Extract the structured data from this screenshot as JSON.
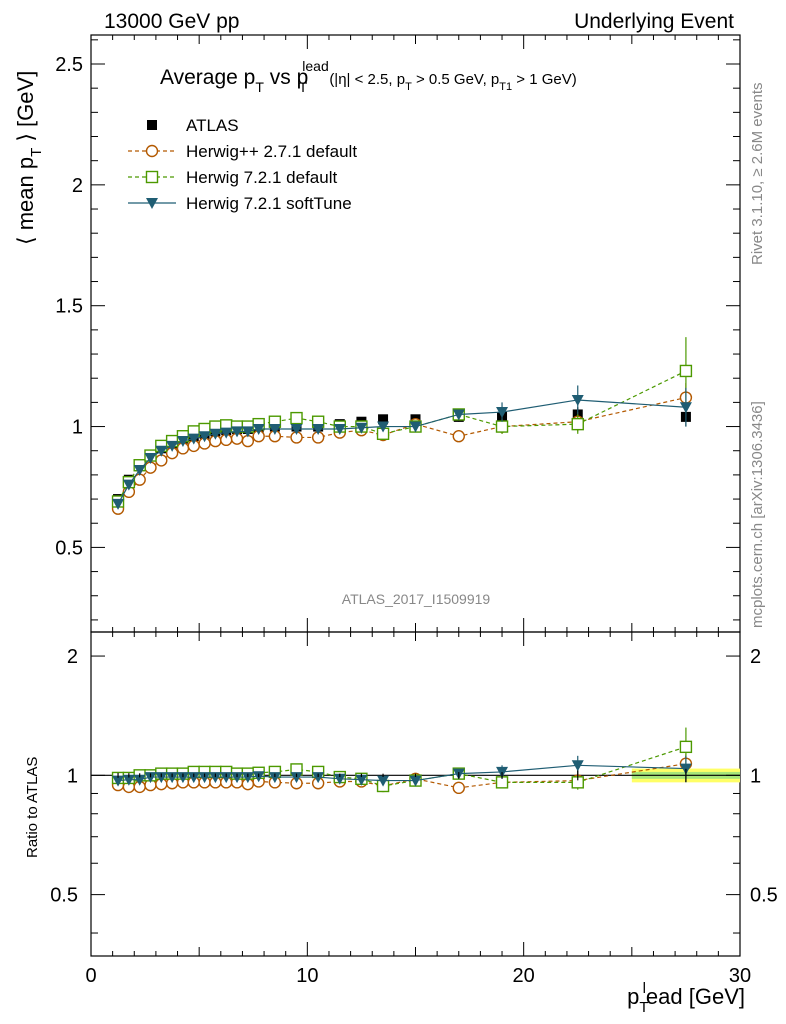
{
  "header": {
    "left": "13000 GeV pp",
    "right": "Underlying Event"
  },
  "side_labels": {
    "rivet": "Rivet 3.1.10, ≥ 2.6M events",
    "mcplots": "mcplots.cern.ch [arXiv:1306.3436]"
  },
  "watermark": "ATLAS_2017_I1509919",
  "colors": {
    "atlas": "#000000",
    "herwigpp": "#b35900",
    "herwig721": "#4c9900",
    "softtune": "#1f5d73",
    "band_outer": "#ffff66",
    "band_inner": "#a6e67a"
  },
  "chart_data": [
    {
      "type": "line",
      "title": "Average p_T vs p_T^lead (|η| < 2.5, p_T > 0.5 GeV, p_T1 > 1 GeV)",
      "title_parts": {
        "main": "Average p",
        "sub1": "T",
        "vs": " vs p",
        "sup": "lead",
        "sub2": "T",
        "cuts": "(|η| < 2.5, p",
        "cut_sub1": "T",
        "cut_mid": " > 0.5 GeV, p",
        "cut_sub2": "T1",
        "cut_end": " > 1 GeV)"
      },
      "ylabel": "⟨ mean p_T ⟩ [GeV]",
      "ylabel_parts": {
        "pre": "⟨ mean p",
        "sub": "T",
        "post": " ⟩ [GeV]"
      },
      "xlim": [
        0,
        30
      ],
      "ylim": [
        0.15,
        2.62
      ],
      "yticks": [
        0.5,
        1,
        1.5,
        2,
        2.5
      ],
      "ytick_labels": [
        "0.5",
        "1",
        "1.5",
        "2",
        "2.5"
      ],
      "legend_position": "top-left",
      "series": [
        {
          "name": "ATLAS",
          "marker": "filled-square",
          "x": [
            1.25,
            1.75,
            2.25,
            2.75,
            3.25,
            3.75,
            4.25,
            4.75,
            5.25,
            5.75,
            6.25,
            6.75,
            7.25,
            7.75,
            8.5,
            9.5,
            10.5,
            11.5,
            12.5,
            13.5,
            15,
            17,
            19,
            22.5,
            27.5
          ],
          "y": [
            0.7,
            0.78,
            0.84,
            0.88,
            0.91,
            0.93,
            0.95,
            0.96,
            0.97,
            0.98,
            0.985,
            0.99,
            0.99,
            0.995,
            1.0,
            1.0,
            1.0,
            1.01,
            1.02,
            1.03,
            1.03,
            1.04,
            1.04,
            1.05,
            1.04
          ],
          "err": [
            0.01,
            0.01,
            0.01,
            0.01,
            0.01,
            0.01,
            0.01,
            0.01,
            0.01,
            0.01,
            0.01,
            0.01,
            0.01,
            0.01,
            0.01,
            0.01,
            0.01,
            0.01,
            0.01,
            0.01,
            0.01,
            0.02,
            0.02,
            0.03,
            0.04
          ]
        },
        {
          "name": "Herwig++ 2.7.1 default",
          "marker": "open-circle",
          "dashed": true,
          "x": [
            1.25,
            1.75,
            2.25,
            2.75,
            3.25,
            3.75,
            4.25,
            4.75,
            5.25,
            5.75,
            6.25,
            6.75,
            7.25,
            7.75,
            8.5,
            9.5,
            10.5,
            11.5,
            12.5,
            13.5,
            15,
            17,
            19,
            22.5,
            27.5
          ],
          "y": [
            0.66,
            0.73,
            0.78,
            0.83,
            0.86,
            0.89,
            0.91,
            0.92,
            0.93,
            0.94,
            0.945,
            0.95,
            0.94,
            0.96,
            0.96,
            0.955,
            0.955,
            0.975,
            0.985,
            0.965,
            1.01,
            0.96,
            1.0,
            1.02,
            1.12
          ],
          "err": [
            0.01,
            0.01,
            0.01,
            0.01,
            0.01,
            0.01,
            0.01,
            0.01,
            0.01,
            0.01,
            0.01,
            0.01,
            0.01,
            0.01,
            0.01,
            0.01,
            0.01,
            0.01,
            0.01,
            0.01,
            0.02,
            0.02,
            0.03,
            0.04,
            0.06
          ]
        },
        {
          "name": "Herwig 7.2.1 default",
          "marker": "open-square",
          "dashed": true,
          "x": [
            1.25,
            1.75,
            2.25,
            2.75,
            3.25,
            3.75,
            4.25,
            4.75,
            5.25,
            5.75,
            6.25,
            6.75,
            7.25,
            7.75,
            8.5,
            9.5,
            10.5,
            11.5,
            12.5,
            13.5,
            15,
            17,
            19,
            22.5,
            27.5
          ],
          "y": [
            0.69,
            0.77,
            0.84,
            0.88,
            0.92,
            0.94,
            0.96,
            0.98,
            0.99,
            1.0,
            1.005,
            1.0,
            1.0,
            1.01,
            1.02,
            1.035,
            1.02,
            1.0,
            1.0,
            0.97,
            1.0,
            1.05,
            1.0,
            1.01,
            1.23
          ],
          "err": [
            0.01,
            0.01,
            0.01,
            0.01,
            0.01,
            0.01,
            0.01,
            0.01,
            0.01,
            0.01,
            0.01,
            0.01,
            0.01,
            0.01,
            0.01,
            0.01,
            0.01,
            0.01,
            0.01,
            0.01,
            0.02,
            0.02,
            0.03,
            0.04,
            0.14
          ]
        },
        {
          "name": "Herwig 7.2.1 softTune",
          "marker": "filled-triangle-down",
          "dashed": false,
          "x": [
            1.25,
            1.75,
            2.25,
            2.75,
            3.25,
            3.75,
            4.25,
            4.75,
            5.25,
            5.75,
            6.25,
            6.75,
            7.25,
            7.75,
            8.5,
            9.5,
            10.5,
            11.5,
            12.5,
            13.5,
            15,
            17,
            19,
            22.5,
            27.5
          ],
          "y": [
            0.68,
            0.76,
            0.82,
            0.87,
            0.9,
            0.92,
            0.94,
            0.95,
            0.96,
            0.97,
            0.975,
            0.98,
            0.98,
            0.99,
            0.99,
            0.99,
            0.99,
            0.99,
            0.995,
            1.0,
            1.0,
            1.05,
            1.06,
            1.11,
            1.08
          ],
          "err": [
            0.01,
            0.01,
            0.01,
            0.01,
            0.01,
            0.01,
            0.01,
            0.01,
            0.01,
            0.01,
            0.01,
            0.01,
            0.01,
            0.01,
            0.01,
            0.01,
            0.01,
            0.01,
            0.01,
            0.01,
            0.02,
            0.02,
            0.04,
            0.06,
            0.08
          ]
        }
      ]
    },
    {
      "type": "line",
      "title": "",
      "ylabel": "Ratio to ATLAS",
      "xlabel": "p_T^lead [GeV]",
      "xlabel_parts": {
        "pre": "p",
        "sub": "T",
        "sup": "l",
        "post": "ead [GeV]"
      },
      "xlim": [
        0,
        30
      ],
      "ylim": [
        0.35,
        2.3
      ],
      "xticks": [
        0,
        10,
        20,
        30
      ],
      "xtick_labels": [
        "0",
        "10",
        "20",
        "30"
      ],
      "yticks": [
        0.5,
        1,
        2
      ],
      "ytick_labels": [
        "0.5",
        "1",
        "2"
      ],
      "reference_line": 1,
      "series": [
        {
          "name": "Herwig++ 2.7.1 default",
          "x": [
            1.25,
            1.75,
            2.25,
            2.75,
            3.25,
            3.75,
            4.25,
            4.75,
            5.25,
            5.75,
            6.25,
            6.75,
            7.25,
            7.75,
            8.5,
            9.5,
            10.5,
            11.5,
            12.5,
            13.5,
            15,
            17,
            19,
            22.5,
            27.5
          ],
          "y": [
            0.945,
            0.935,
            0.935,
            0.945,
            0.95,
            0.955,
            0.96,
            0.96,
            0.96,
            0.96,
            0.96,
            0.96,
            0.95,
            0.965,
            0.96,
            0.955,
            0.955,
            0.965,
            0.965,
            0.94,
            0.98,
            0.93,
            0.96,
            0.97,
            1.07
          ],
          "err": [
            0.01,
            0.01,
            0.01,
            0.01,
            0.01,
            0.01,
            0.01,
            0.01,
            0.01,
            0.01,
            0.01,
            0.01,
            0.01,
            0.01,
            0.01,
            0.01,
            0.01,
            0.01,
            0.01,
            0.01,
            0.02,
            0.02,
            0.03,
            0.04,
            0.06
          ]
        },
        {
          "name": "Herwig 7.2.1 default",
          "x": [
            1.25,
            1.75,
            2.25,
            2.75,
            3.25,
            3.75,
            4.25,
            4.75,
            5.25,
            5.75,
            6.25,
            6.75,
            7.25,
            7.75,
            8.5,
            9.5,
            10.5,
            11.5,
            12.5,
            13.5,
            15,
            17,
            19,
            22.5,
            27.5
          ],
          "y": [
            0.985,
            0.985,
            1.0,
            1.0,
            1.01,
            1.01,
            1.01,
            1.02,
            1.02,
            1.02,
            1.02,
            1.01,
            1.01,
            1.015,
            1.02,
            1.035,
            1.02,
            0.99,
            0.98,
            0.94,
            0.97,
            1.01,
            0.96,
            0.96,
            1.18
          ],
          "err": [
            0.01,
            0.01,
            0.01,
            0.01,
            0.01,
            0.01,
            0.01,
            0.01,
            0.01,
            0.01,
            0.01,
            0.01,
            0.01,
            0.01,
            0.01,
            0.01,
            0.01,
            0.01,
            0.01,
            0.01,
            0.02,
            0.02,
            0.03,
            0.04,
            0.14
          ]
        },
        {
          "name": "Herwig 7.2.1 softTune",
          "x": [
            1.25,
            1.75,
            2.25,
            2.75,
            3.25,
            3.75,
            4.25,
            4.75,
            5.25,
            5.75,
            6.25,
            6.75,
            7.25,
            7.75,
            8.5,
            9.5,
            10.5,
            11.5,
            12.5,
            13.5,
            15,
            17,
            19,
            22.5,
            27.5
          ],
          "y": [
            0.97,
            0.975,
            0.975,
            0.99,
            0.99,
            0.99,
            0.99,
            0.99,
            0.99,
            0.99,
            0.99,
            0.99,
            0.99,
            0.995,
            0.99,
            0.99,
            0.99,
            0.98,
            0.975,
            0.97,
            0.97,
            1.01,
            1.02,
            1.06,
            1.04
          ],
          "err": [
            0.01,
            0.01,
            0.01,
            0.01,
            0.01,
            0.01,
            0.01,
            0.01,
            0.01,
            0.01,
            0.01,
            0.01,
            0.01,
            0.01,
            0.01,
            0.01,
            0.01,
            0.01,
            0.01,
            0.01,
            0.02,
            0.02,
            0.04,
            0.06,
            0.08
          ]
        }
      ],
      "band": {
        "x_from": 25,
        "x_to": 30,
        "outer": [
          0.96,
          1.04
        ],
        "inner": [
          0.98,
          1.02
        ]
      }
    }
  ]
}
